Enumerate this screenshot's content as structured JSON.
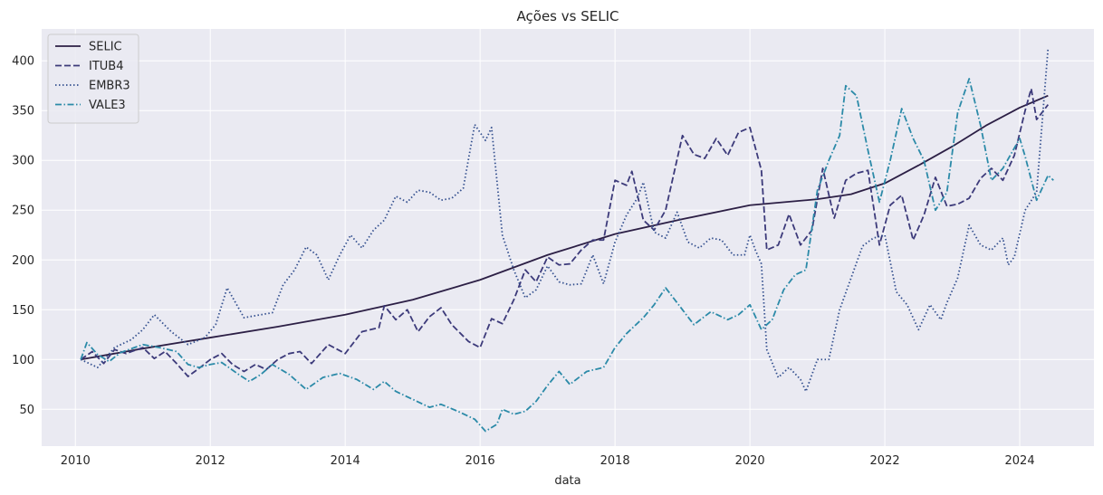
{
  "chart_data": {
    "type": "line",
    "title": "Ações vs SELIC",
    "xlabel": "data",
    "ylabel": "",
    "xlim": [
      2009.5,
      2025.1
    ],
    "ylim": [
      13,
      432
    ],
    "x_ticks": [
      2010,
      2012,
      2014,
      2016,
      2018,
      2020,
      2022,
      2024
    ],
    "y_ticks": [
      50,
      100,
      150,
      200,
      250,
      300,
      350,
      400
    ],
    "grid": true,
    "legend_position": "top-left",
    "background": "#eaeaf2",
    "series": [
      {
        "name": "SELIC",
        "color": "#2c1f45",
        "dash": "solid",
        "points": [
          [
            2010.08,
            100
          ],
          [
            2011,
            111
          ],
          [
            2012,
            122
          ],
          [
            2013,
            133
          ],
          [
            2014,
            145
          ],
          [
            2015,
            160
          ],
          [
            2016,
            180
          ],
          [
            2017,
            205
          ],
          [
            2018,
            226
          ],
          [
            2019,
            241
          ],
          [
            2020,
            255
          ],
          [
            2021,
            261
          ],
          [
            2021.5,
            266
          ],
          [
            2022,
            277
          ],
          [
            2022.5,
            295
          ],
          [
            2023,
            314
          ],
          [
            2023.5,
            335
          ],
          [
            2024,
            353
          ],
          [
            2024.42,
            365
          ]
        ]
      },
      {
        "name": "ITUB4",
        "color": "#3c3a7a",
        "dash": "dash",
        "points": [
          [
            2010.08,
            100
          ],
          [
            2010.25,
            108
          ],
          [
            2010.42,
            96
          ],
          [
            2010.58,
            110
          ],
          [
            2010.75,
            106
          ],
          [
            2011,
            112
          ],
          [
            2011.17,
            101
          ],
          [
            2011.33,
            108
          ],
          [
            2011.5,
            96
          ],
          [
            2011.67,
            83
          ],
          [
            2011.83,
            91
          ],
          [
            2012,
            100
          ],
          [
            2012.17,
            106
          ],
          [
            2012.33,
            95
          ],
          [
            2012.5,
            88
          ],
          [
            2012.67,
            95
          ],
          [
            2012.83,
            90
          ],
          [
            2013,
            100
          ],
          [
            2013.17,
            106
          ],
          [
            2013.33,
            108
          ],
          [
            2013.5,
            96
          ],
          [
            2013.75,
            115
          ],
          [
            2014,
            106
          ],
          [
            2014.25,
            128
          ],
          [
            2014.5,
            132
          ],
          [
            2014.58,
            154
          ],
          [
            2014.75,
            140
          ],
          [
            2014.92,
            150
          ],
          [
            2015.08,
            128
          ],
          [
            2015.25,
            143
          ],
          [
            2015.42,
            152
          ],
          [
            2015.58,
            135
          ],
          [
            2015.83,
            118
          ],
          [
            2016,
            112
          ],
          [
            2016.17,
            141
          ],
          [
            2016.33,
            136
          ],
          [
            2016.5,
            160
          ],
          [
            2016.67,
            190
          ],
          [
            2016.83,
            178
          ],
          [
            2017,
            203
          ],
          [
            2017.17,
            195
          ],
          [
            2017.33,
            196
          ],
          [
            2017.5,
            210
          ],
          [
            2017.67,
            220
          ],
          [
            2017.83,
            220
          ],
          [
            2018,
            280
          ],
          [
            2018.17,
            275
          ],
          [
            2018.25,
            289
          ],
          [
            2018.42,
            240
          ],
          [
            2018.58,
            230
          ],
          [
            2018.75,
            250
          ],
          [
            2019,
            325
          ],
          [
            2019.17,
            306
          ],
          [
            2019.33,
            302
          ],
          [
            2019.5,
            322
          ],
          [
            2019.67,
            305
          ],
          [
            2019.83,
            328
          ],
          [
            2020,
            333
          ],
          [
            2020.17,
            290
          ],
          [
            2020.25,
            210
          ],
          [
            2020.42,
            215
          ],
          [
            2020.58,
            246
          ],
          [
            2020.75,
            215
          ],
          [
            2020.92,
            230
          ],
          [
            2021.08,
            292
          ],
          [
            2021.25,
            242
          ],
          [
            2021.42,
            280
          ],
          [
            2021.58,
            287
          ],
          [
            2021.75,
            290
          ],
          [
            2021.92,
            215
          ],
          [
            2022.08,
            255
          ],
          [
            2022.25,
            265
          ],
          [
            2022.42,
            220
          ],
          [
            2022.58,
            245
          ],
          [
            2022.75,
            283
          ],
          [
            2022.92,
            254
          ],
          [
            2023.08,
            256
          ],
          [
            2023.25,
            262
          ],
          [
            2023.42,
            282
          ],
          [
            2023.58,
            292
          ],
          [
            2023.75,
            280
          ],
          [
            2023.92,
            305
          ],
          [
            2024.08,
            350
          ],
          [
            2024.17,
            372
          ],
          [
            2024.25,
            341
          ],
          [
            2024.42,
            356
          ]
        ]
      },
      {
        "name": "EMBR3",
        "color": "#34508f",
        "dash": "dot",
        "points": [
          [
            2010.08,
            100
          ],
          [
            2010.33,
            92
          ],
          [
            2010.58,
            112
          ],
          [
            2010.83,
            120
          ],
          [
            2011,
            130
          ],
          [
            2011.17,
            145
          ],
          [
            2011.42,
            128
          ],
          [
            2011.67,
            115
          ],
          [
            2011.92,
            122
          ],
          [
            2012.08,
            135
          ],
          [
            2012.25,
            172
          ],
          [
            2012.5,
            142
          ],
          [
            2012.75,
            145
          ],
          [
            2012.92,
            147
          ],
          [
            2013.08,
            175
          ],
          [
            2013.25,
            190
          ],
          [
            2013.42,
            213
          ],
          [
            2013.58,
            205
          ],
          [
            2013.75,
            180
          ],
          [
            2013.92,
            205
          ],
          [
            2014.08,
            225
          ],
          [
            2014.25,
            212
          ],
          [
            2014.42,
            230
          ],
          [
            2014.58,
            240
          ],
          [
            2014.75,
            264
          ],
          [
            2014.92,
            258
          ],
          [
            2015.08,
            270
          ],
          [
            2015.25,
            268
          ],
          [
            2015.42,
            260
          ],
          [
            2015.58,
            262
          ],
          [
            2015.75,
            272
          ],
          [
            2015.92,
            336
          ],
          [
            2016.08,
            320
          ],
          [
            2016.17,
            333
          ],
          [
            2016.33,
            225
          ],
          [
            2016.5,
            190
          ],
          [
            2016.67,
            162
          ],
          [
            2016.83,
            170
          ],
          [
            2017,
            194
          ],
          [
            2017.17,
            178
          ],
          [
            2017.33,
            175
          ],
          [
            2017.5,
            176
          ],
          [
            2017.67,
            205
          ],
          [
            2017.83,
            176
          ],
          [
            2018,
            218
          ],
          [
            2018.17,
            245
          ],
          [
            2018.33,
            262
          ],
          [
            2018.42,
            278
          ],
          [
            2018.58,
            228
          ],
          [
            2018.75,
            222
          ],
          [
            2018.92,
            248
          ],
          [
            2019.08,
            218
          ],
          [
            2019.25,
            212
          ],
          [
            2019.42,
            222
          ],
          [
            2019.58,
            220
          ],
          [
            2019.75,
            205
          ],
          [
            2019.92,
            205
          ],
          [
            2020,
            225
          ],
          [
            2020.08,
            210
          ],
          [
            2020.17,
            196
          ],
          [
            2020.25,
            110
          ],
          [
            2020.42,
            82
          ],
          [
            2020.58,
            92
          ],
          [
            2020.75,
            80
          ],
          [
            2020.83,
            68
          ],
          [
            2021,
            100
          ],
          [
            2021.17,
            100
          ],
          [
            2021.33,
            150
          ],
          [
            2021.5,
            182
          ],
          [
            2021.67,
            214
          ],
          [
            2021.83,
            222
          ],
          [
            2022,
            225
          ],
          [
            2022.17,
            168
          ],
          [
            2022.33,
            155
          ],
          [
            2022.5,
            130
          ],
          [
            2022.67,
            155
          ],
          [
            2022.83,
            140
          ],
          [
            2022.92,
            157
          ],
          [
            2023.08,
            182
          ],
          [
            2023.25,
            235
          ],
          [
            2023.42,
            215
          ],
          [
            2023.58,
            210
          ],
          [
            2023.75,
            222
          ],
          [
            2023.83,
            195
          ],
          [
            2023.92,
            203
          ],
          [
            2024.08,
            250
          ],
          [
            2024.25,
            268
          ],
          [
            2024.42,
            413
          ]
        ]
      },
      {
        "name": "VALE3",
        "color": "#2b8aa8",
        "dash": "dashdot",
        "points": [
          [
            2010.08,
            100
          ],
          [
            2010.17,
            117
          ],
          [
            2010.33,
            105
          ],
          [
            2010.5,
            98
          ],
          [
            2010.67,
            107
          ],
          [
            2011,
            115
          ],
          [
            2011.25,
            112
          ],
          [
            2011.5,
            108
          ],
          [
            2011.67,
            95
          ],
          [
            2011.83,
            92
          ],
          [
            2012,
            95
          ],
          [
            2012.17,
            97
          ],
          [
            2012.42,
            85
          ],
          [
            2012.58,
            78
          ],
          [
            2012.75,
            85
          ],
          [
            2012.92,
            95
          ],
          [
            2013.17,
            85
          ],
          [
            2013.42,
            70
          ],
          [
            2013.67,
            82
          ],
          [
            2013.92,
            86
          ],
          [
            2014.17,
            80
          ],
          [
            2014.42,
            70
          ],
          [
            2014.58,
            78
          ],
          [
            2014.75,
            68
          ],
          [
            2015,
            60
          ],
          [
            2015.25,
            52
          ],
          [
            2015.42,
            55
          ],
          [
            2015.67,
            48
          ],
          [
            2015.92,
            40
          ],
          [
            2016.08,
            28
          ],
          [
            2016.25,
            35
          ],
          [
            2016.33,
            50
          ],
          [
            2016.5,
            45
          ],
          [
            2016.67,
            48
          ],
          [
            2016.83,
            58
          ],
          [
            2017,
            74
          ],
          [
            2017.17,
            88
          ],
          [
            2017.33,
            75
          ],
          [
            2017.58,
            88
          ],
          [
            2017.83,
            92
          ],
          [
            2018,
            112
          ],
          [
            2018.17,
            126
          ],
          [
            2018.42,
            142
          ],
          [
            2018.58,
            155
          ],
          [
            2018.75,
            172
          ],
          [
            2019,
            150
          ],
          [
            2019.17,
            135
          ],
          [
            2019.42,
            148
          ],
          [
            2019.67,
            140
          ],
          [
            2019.83,
            145
          ],
          [
            2020,
            155
          ],
          [
            2020.17,
            130
          ],
          [
            2020.33,
            140
          ],
          [
            2020.5,
            170
          ],
          [
            2020.67,
            185
          ],
          [
            2020.83,
            190
          ],
          [
            2021,
            270
          ],
          [
            2021.17,
            300
          ],
          [
            2021.33,
            325
          ],
          [
            2021.42,
            375
          ],
          [
            2021.58,
            365
          ],
          [
            2021.75,
            310
          ],
          [
            2021.92,
            258
          ],
          [
            2022.08,
            300
          ],
          [
            2022.25,
            352
          ],
          [
            2022.42,
            322
          ],
          [
            2022.58,
            300
          ],
          [
            2022.75,
            250
          ],
          [
            2022.92,
            268
          ],
          [
            2023.08,
            348
          ],
          [
            2023.25,
            382
          ],
          [
            2023.42,
            335
          ],
          [
            2023.58,
            280
          ],
          [
            2023.75,
            292
          ],
          [
            2024,
            322
          ],
          [
            2024.08,
            304
          ],
          [
            2024.25,
            260
          ],
          [
            2024.42,
            285
          ],
          [
            2024.5,
            280
          ]
        ]
      }
    ]
  }
}
